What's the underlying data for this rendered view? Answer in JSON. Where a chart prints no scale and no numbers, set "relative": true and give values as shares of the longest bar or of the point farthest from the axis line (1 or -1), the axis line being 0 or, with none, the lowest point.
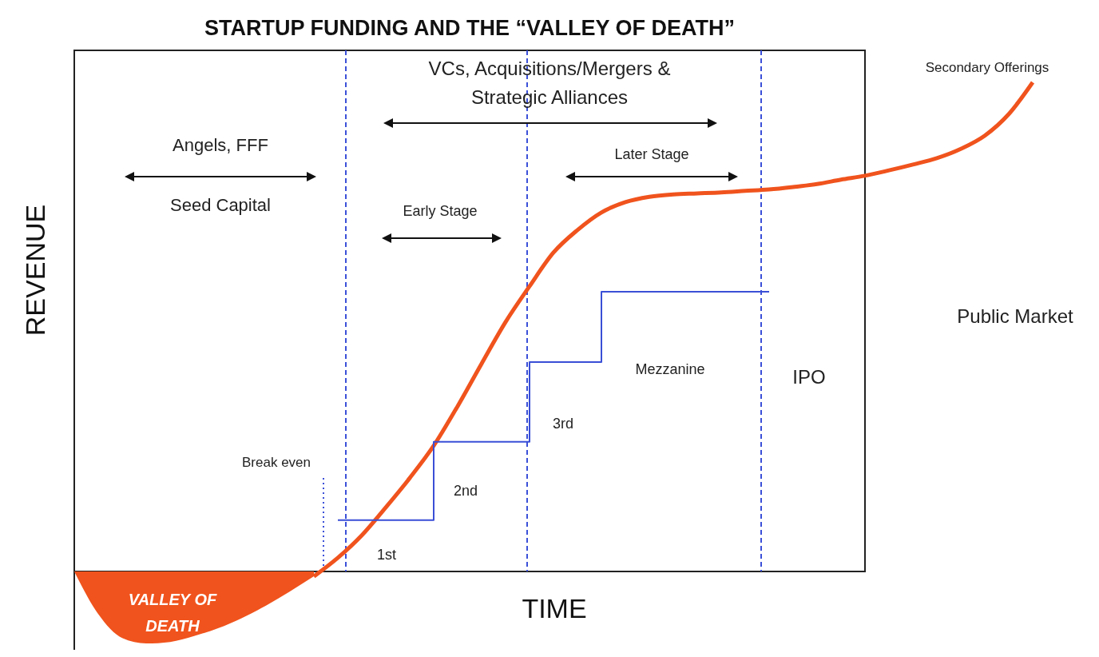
{
  "chart_data": {
    "type": "line",
    "title": "STARTUP FUNDING AND THE “VALLEY OF DEATH”",
    "xlabel": "TIME",
    "ylabel": "REVENUE",
    "relative": true,
    "categories": [
      null,
      null,
      null,
      null,
      null,
      null,
      null,
      null,
      null,
      null,
      null,
      null,
      null,
      null,
      null,
      null,
      null,
      null,
      null,
      null,
      null,
      null,
      null,
      null,
      null,
      null,
      null,
      null,
      null,
      null,
      null,
      null,
      null,
      null,
      null,
      null,
      null,
      null,
      null,
      null,
      null
    ],
    "series": [
      {
        "type": "area",
        "color": "#f0531d",
        "values": [
          0,
          -0.087,
          -0.136,
          -0.147,
          -0.144,
          -0.132,
          -0.116,
          -0.095,
          -0.07,
          -0.041,
          -0.01,
          null,
          null,
          null,
          null,
          null,
          null,
          null,
          null,
          null,
          null,
          null,
          null,
          null,
          null,
          null,
          null,
          null,
          null,
          null,
          null,
          null,
          null,
          null,
          null,
          null,
          null,
          null,
          null,
          null,
          null
        ]
      },
      {
        "color": "#f0531d",
        "values": [
          null,
          null,
          null,
          null,
          null,
          null,
          null,
          null,
          null,
          null,
          -0.01,
          0.028,
          0.074,
          0.131,
          0.191,
          0.257,
          0.338,
          0.425,
          0.51,
          0.583,
          0.652,
          0.698,
          0.734,
          0.755,
          0.766,
          0.771,
          0.773,
          0.775,
          0.778,
          0.781,
          0.786,
          0.792,
          0.801,
          0.809,
          0.82,
          0.832,
          0.845,
          0.864,
          0.891,
          0.935,
          1
        ]
      },
      {
        "type": "step",
        "color": "#3a4fd6",
        "values": [
          null,
          null,
          null,
          null,
          null,
          null,
          null,
          null,
          null,
          null,
          null,
          0.105,
          0.105,
          0.105,
          0.105,
          0.265,
          0.265,
          0.265,
          0.265,
          0.428,
          0.428,
          0.428,
          0.572,
          0.572,
          0.572,
          0.572,
          0.572,
          0.572,
          0.572,
          0.572,
          null,
          null,
          null,
          null,
          null,
          null,
          null,
          null,
          null,
          null,
          null
        ]
      }
    ],
    "annotations": [
      "VCs, Acquisitions/Mergers &\nStrategic Alliances",
      "Angels, FFF",
      "Seed Capital",
      "Early Stage",
      "Later Stage",
      "Break even",
      "1st",
      "2nd",
      "3rd",
      "Mezzanine",
      "IPO",
      "Public Market",
      "Secondary Offerings",
      "VALLEY OF\nDEATH"
    ]
  }
}
